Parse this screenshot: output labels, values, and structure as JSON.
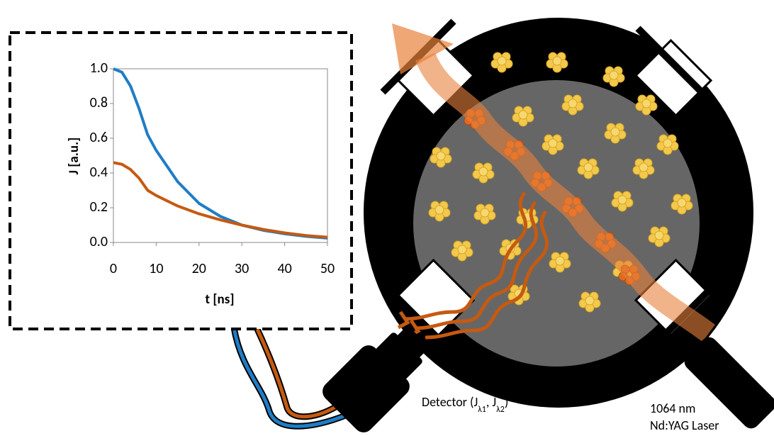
{
  "chart_data": {
    "type": "line",
    "x": [
      0,
      2,
      4,
      6,
      8,
      10,
      15,
      20,
      25,
      30,
      35,
      40,
      45,
      50
    ],
    "series": [
      {
        "color": "#1f7dc6",
        "values": [
          1.0,
          0.98,
          0.9,
          0.77,
          0.62,
          0.53,
          0.35,
          0.225,
          0.15,
          0.1,
          0.07,
          0.05,
          0.035,
          0.025
        ]
      },
      {
        "color": "#c55a11",
        "values": [
          0.46,
          0.45,
          0.42,
          0.37,
          0.3,
          0.27,
          0.21,
          0.165,
          0.13,
          0.1,
          0.075,
          0.055,
          0.04,
          0.03
        ]
      }
    ],
    "xlim": [
      0,
      50
    ],
    "xticks": [
      0,
      10,
      20,
      30,
      40,
      50
    ],
    "ylim": [
      0,
      1.0
    ],
    "yticks": [
      {
        "value": 0,
        "label": "0.0"
      },
      0.2,
      0.4,
      0.6,
      0.8,
      {
        "value": 1.0,
        "label": "1.0"
      }
    ],
    "xlabel": "t [ns]",
    "ylabel": "J [a.u.]"
  },
  "labels": {
    "detector": [
      "Detector (J",
      "λ1",
      ", J",
      "λ2",
      ")"
    ],
    "laser": [
      "1064 nm",
      "Nd:YAG Laser"
    ]
  }
}
